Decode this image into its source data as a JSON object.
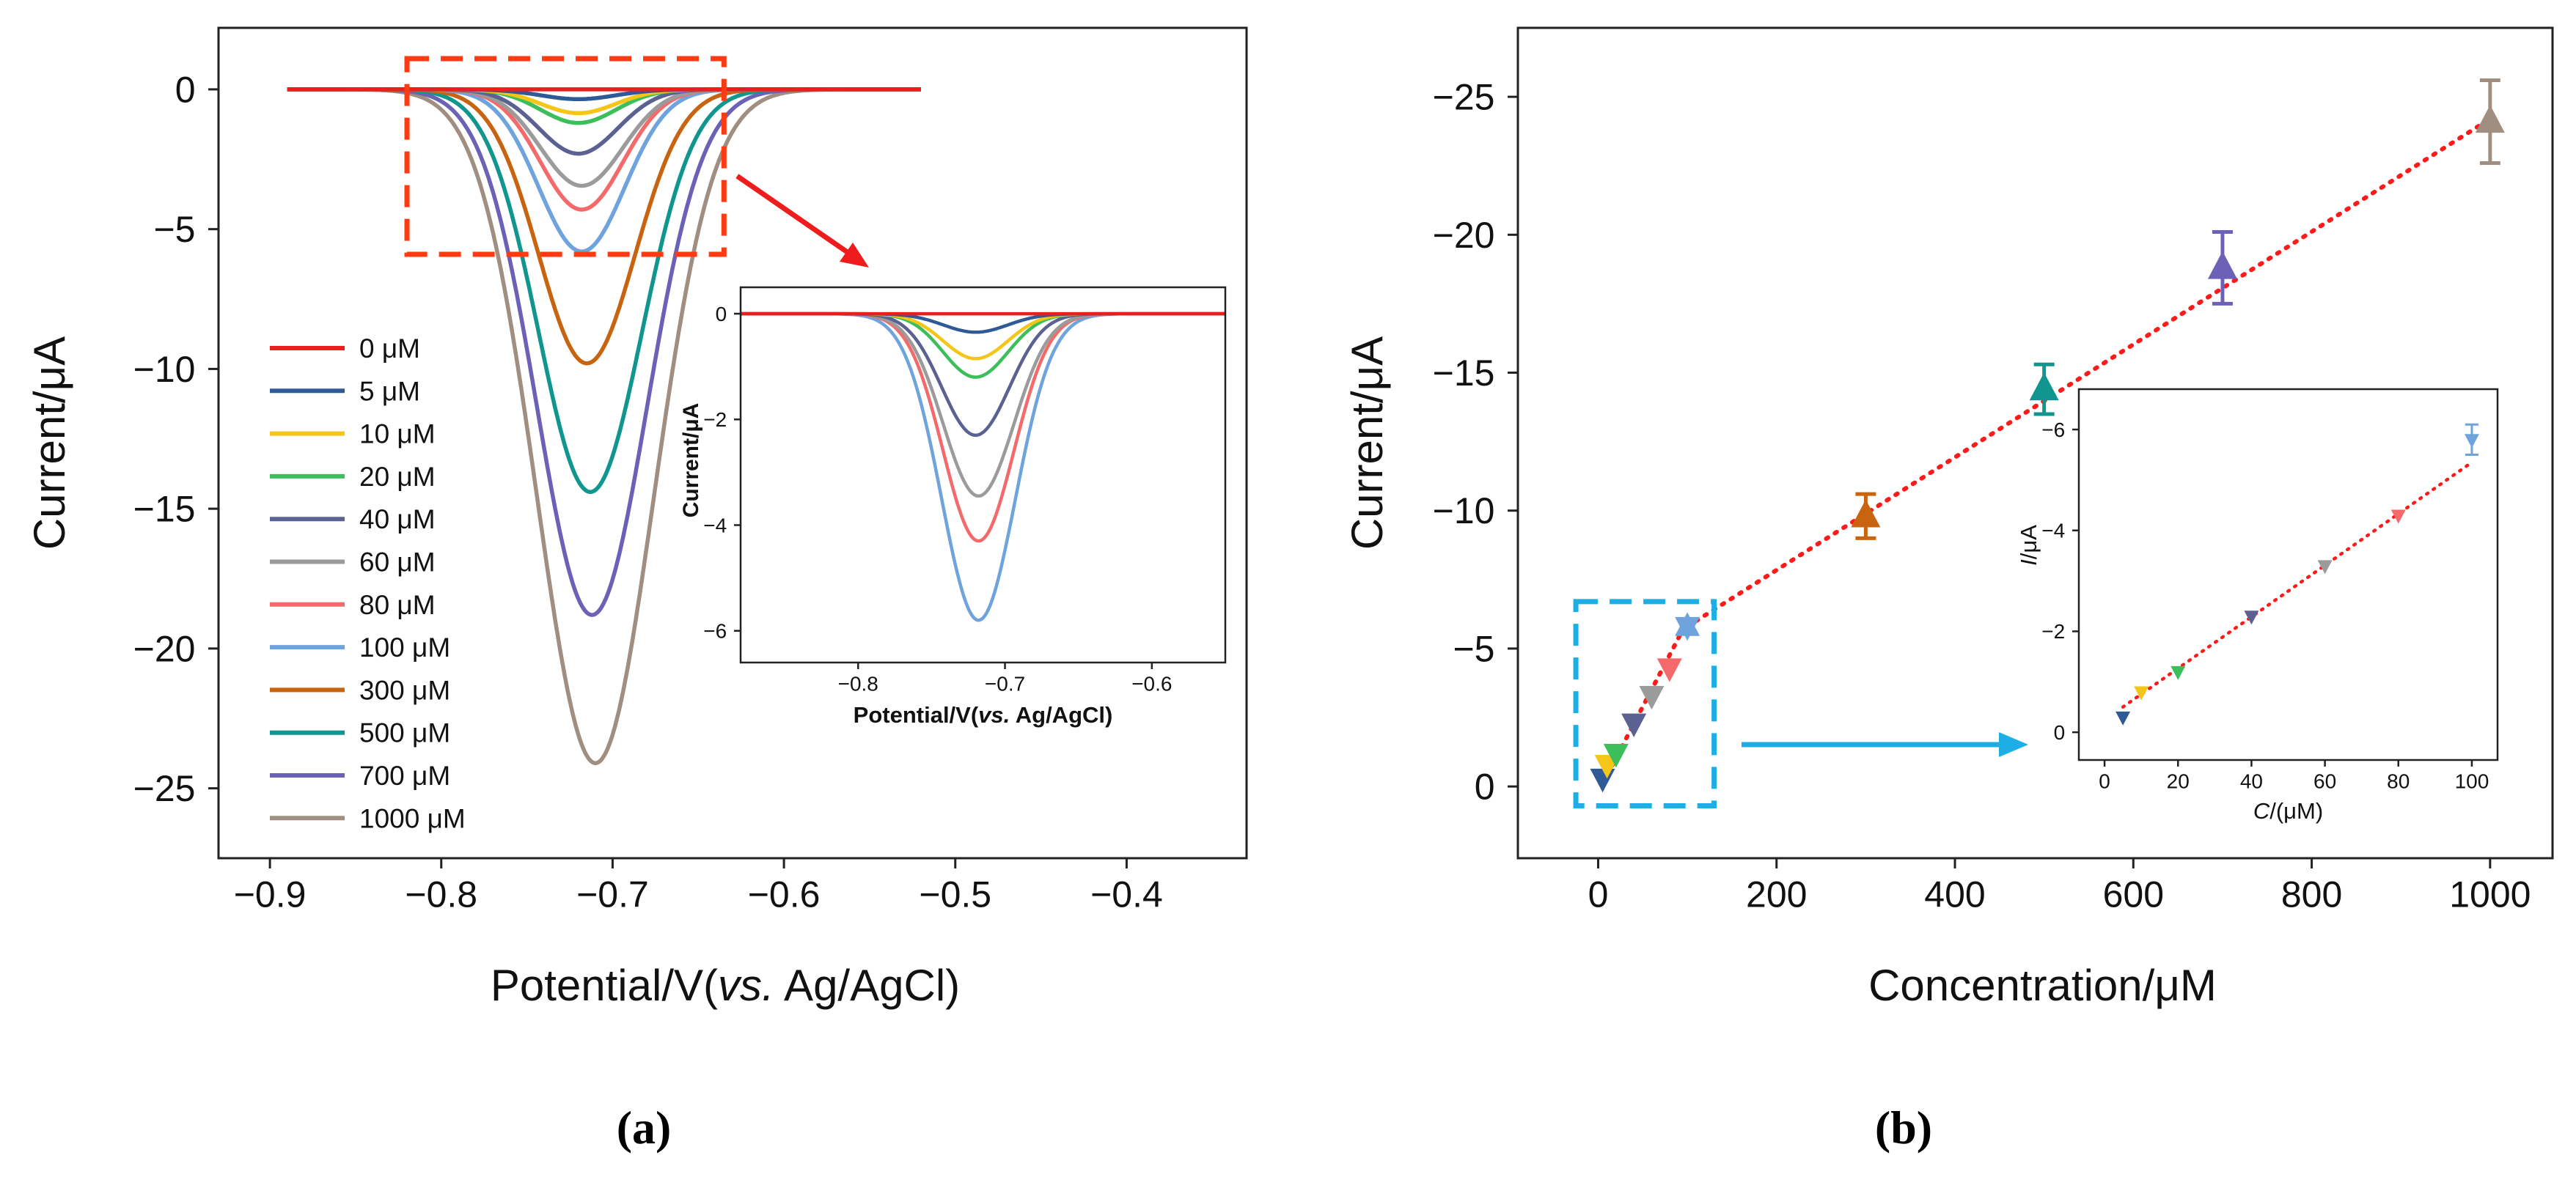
{
  "figure": {
    "panel_a_label": "(a)",
    "panel_b_label": "(b)"
  },
  "colors": {
    "0": "#ee1c1c",
    "5": "#2e5a96",
    "10": "#f5c518",
    "20": "#3cbf5a",
    "40": "#5b6292",
    "60": "#9b9b9b",
    "80": "#f46a6a",
    "100": "#6fa3dd",
    "300": "#c8640f",
    "500": "#10958f",
    "700": "#6b62b8",
    "1000": "#a08e80",
    "fit": "#ff1a1a",
    "zoom_box_a": "#ff3a12",
    "zoom_box_b": "#1eaee6"
  },
  "chart_data": [
    {
      "id": "a",
      "type": "line",
      "title": "",
      "xlabel": "Potential/V(vs. Ag/AgCl)",
      "xlabel_parts": [
        "Potential/V(",
        "vs.",
        " Ag/AgCl)"
      ],
      "ylabel": "Current/μA",
      "xlim": [
        -0.93,
        -0.33
      ],
      "ylim": [
        -27.5,
        2.2
      ],
      "xticks": [
        -0.9,
        -0.8,
        -0.7,
        -0.6,
        -0.5,
        -0.4
      ],
      "xtick_labels": [
        "−0.9",
        "−0.8",
        "−0.7",
        "−0.6",
        "−0.5",
        "−0.4"
      ],
      "yticks": [
        0,
        -5,
        -10,
        -15,
        -20,
        -25
      ],
      "ytick_labels": [
        "0",
        "−5",
        "−10",
        "−15",
        "−20",
        "−25"
      ],
      "baseline_range": [
        -0.89,
        -0.52
      ],
      "zoom_box": {
        "x": [
          -0.82,
          -0.635
        ],
        "y": [
          -5.9,
          1.1
        ]
      },
      "legend_position": "lower-left",
      "series": [
        {
          "name": "0 μM",
          "conc": "0",
          "peak_x": -0.72,
          "peak_y": 0.0,
          "width": 0.032
        },
        {
          "name": "5 μM",
          "conc": "5",
          "peak_x": -0.72,
          "peak_y": -0.35,
          "width": 0.022
        },
        {
          "name": "10 μM",
          "conc": "10",
          "peak_x": -0.72,
          "peak_y": -0.85,
          "width": 0.022
        },
        {
          "name": "20 μM",
          "conc": "20",
          "peak_x": -0.72,
          "peak_y": -1.2,
          "width": 0.022
        },
        {
          "name": "40 μM",
          "conc": "40",
          "peak_x": -0.72,
          "peak_y": -2.3,
          "width": 0.023
        },
        {
          "name": "60 μM",
          "conc": "60",
          "peak_x": -0.718,
          "peak_y": -3.45,
          "width": 0.024
        },
        {
          "name": "80 μM",
          "conc": "80",
          "peak_x": -0.718,
          "peak_y": -4.3,
          "width": 0.024
        },
        {
          "name": "100 μM",
          "conc": "100",
          "peak_x": -0.718,
          "peak_y": -5.8,
          "width": 0.025
        },
        {
          "name": "300 μM",
          "conc": "300",
          "peak_x": -0.715,
          "peak_y": -9.8,
          "width": 0.028
        },
        {
          "name": "500 μM",
          "conc": "500",
          "peak_x": -0.713,
          "peak_y": -14.4,
          "width": 0.03
        },
        {
          "name": "700 μM",
          "conc": "700",
          "peak_x": -0.712,
          "peak_y": -18.8,
          "width": 0.032
        },
        {
          "name": "1000 μM",
          "conc": "1000",
          "peak_x": -0.71,
          "peak_y": -24.1,
          "width": 0.034
        }
      ],
      "inset": {
        "xlabel_parts": [
          "Potential/V(",
          "vs.",
          " Ag/AgCl)"
        ],
        "ylabel": "Current/μA",
        "xlim": [
          -0.88,
          -0.55
        ],
        "ylim": [
          -6.6,
          0.5
        ],
        "xticks": [
          -0.8,
          -0.7,
          -0.6
        ],
        "xtick_labels": [
          "−0.8",
          "−0.7",
          "−0.6"
        ],
        "yticks": [
          0,
          -2,
          -4,
          -6
        ],
        "ytick_labels": [
          "0",
          "−2",
          "−4",
          "−6"
        ],
        "series_count": 8
      }
    },
    {
      "id": "b",
      "type": "scatter",
      "title": "",
      "xlabel": "Concentration/μM",
      "ylabel": "Current/μA",
      "xlim": [
        -90,
        1070
      ],
      "ylim": [
        2.6,
        -27.5
      ],
      "xticks": [
        0,
        200,
        400,
        600,
        800,
        1000
      ],
      "xtick_labels": [
        "0",
        "200",
        "400",
        "600",
        "800",
        "1000"
      ],
      "yticks": [
        0,
        -5,
        -10,
        -15,
        -20,
        -25
      ],
      "ytick_labels": [
        "0",
        "−5",
        "−10",
        "−15",
        "−20",
        "−25"
      ],
      "fit_low": {
        "x": [
          5,
          100
        ],
        "y": [
          -0.1,
          -6.0
        ]
      },
      "fit_high": {
        "x": [
          100,
          1000
        ],
        "y": [
          -5.8,
          -24.2
        ]
      },
      "zoom_box": {
        "x": [
          -25,
          130
        ],
        "y": [
          0.7,
          -6.7
        ]
      },
      "points_low": [
        {
          "x": 5,
          "y": -0.3,
          "conc": "5"
        },
        {
          "x": 10,
          "y": -0.8,
          "conc": "10"
        },
        {
          "x": 20,
          "y": -1.2,
          "conc": "20"
        },
        {
          "x": 40,
          "y": -2.3,
          "conc": "40"
        },
        {
          "x": 60,
          "y": -3.3,
          "conc": "60"
        },
        {
          "x": 80,
          "y": -4.3,
          "conc": "80"
        },
        {
          "x": 100,
          "y": -5.8,
          "conc": "100"
        }
      ],
      "points_high": [
        {
          "x": 300,
          "y": -9.8,
          "err": 0.8,
          "conc": "300"
        },
        {
          "x": 500,
          "y": -14.4,
          "err": 0.9,
          "conc": "500"
        },
        {
          "x": 700,
          "y": -18.8,
          "err": 1.3,
          "conc": "700"
        },
        {
          "x": 1000,
          "y": -24.1,
          "err": 1.5,
          "conc": "1000"
        }
      ],
      "inset": {
        "xlabel_parts": [
          "C",
          "/(μM)"
        ],
        "ylabel_parts": [
          "I",
          "/μA"
        ],
        "xlim": [
          -7,
          107
        ],
        "ylim": [
          0.55,
          -6.8
        ],
        "xticks": [
          0,
          20,
          40,
          60,
          80,
          100
        ],
        "xtick_labels": [
          "0",
          "20",
          "40",
          "60",
          "80",
          "100"
        ],
        "yticks": [
          0,
          -2,
          -4,
          -6
        ],
        "ytick_labels": [
          "0",
          "−2",
          "−4",
          "−6"
        ],
        "fit": {
          "x": [
            5,
            100
          ],
          "y": [
            -0.5,
            -5.35
          ]
        },
        "points": [
          {
            "x": 5,
            "y": -0.3,
            "conc": "5"
          },
          {
            "x": 10,
            "y": -0.8,
            "conc": "10"
          },
          {
            "x": 20,
            "y": -1.2,
            "conc": "20"
          },
          {
            "x": 40,
            "y": -2.3,
            "conc": "40"
          },
          {
            "x": 60,
            "y": -3.3,
            "conc": "60"
          },
          {
            "x": 80,
            "y": -4.3,
            "conc": "80"
          },
          {
            "x": 100,
            "y": -5.8,
            "err": 0.3,
            "conc": "100"
          }
        ]
      }
    }
  ]
}
